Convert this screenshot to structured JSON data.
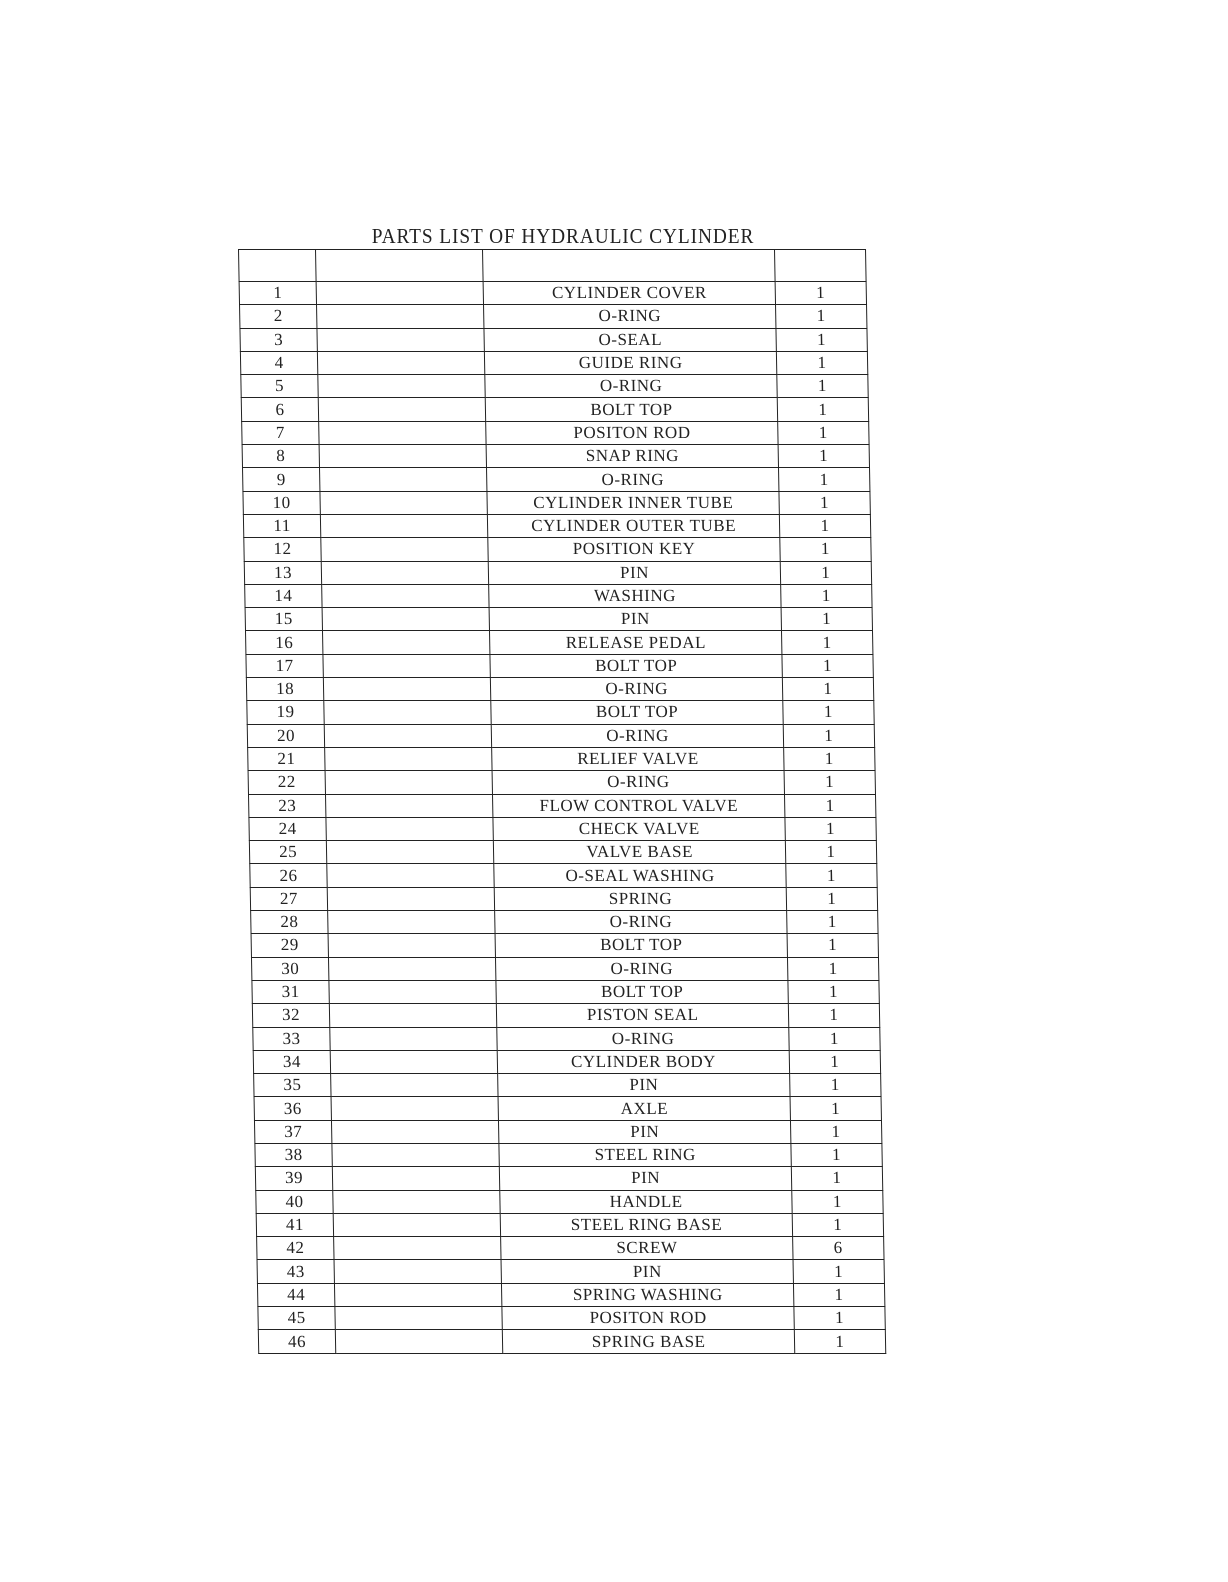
{
  "title": "PARTS LIST OF HYDRAULIC CYLINDER",
  "table": {
    "header": [
      "",
      "",
      "",
      ""
    ],
    "rows": [
      {
        "no": "1",
        "part_no": "",
        "name": "CYLINDER COVER",
        "qty": "1"
      },
      {
        "no": "2",
        "part_no": "",
        "name": "O-RING",
        "qty": "1"
      },
      {
        "no": "3",
        "part_no": "",
        "name": "O-SEAL",
        "qty": "1"
      },
      {
        "no": "4",
        "part_no": "",
        "name": "GUIDE RING",
        "qty": "1"
      },
      {
        "no": "5",
        "part_no": "",
        "name": "O-RING",
        "qty": "1"
      },
      {
        "no": "6",
        "part_no": "",
        "name": "BOLT TOP",
        "qty": "1"
      },
      {
        "no": "7",
        "part_no": "",
        "name": "POSITON ROD",
        "qty": "1"
      },
      {
        "no": "8",
        "part_no": "",
        "name": "SNAP RING",
        "qty": "1"
      },
      {
        "no": "9",
        "part_no": "",
        "name": "O-RING",
        "qty": "1"
      },
      {
        "no": "10",
        "part_no": "",
        "name": "CYLINDER INNER TUBE",
        "qty": "1"
      },
      {
        "no": "11",
        "part_no": "",
        "name": "CYLINDER OUTER TUBE",
        "qty": "1"
      },
      {
        "no": "12",
        "part_no": "",
        "name": "POSITION KEY",
        "qty": "1"
      },
      {
        "no": "13",
        "part_no": "",
        "name": "PIN",
        "qty": "1"
      },
      {
        "no": "14",
        "part_no": "",
        "name": "WASHING",
        "qty": "1"
      },
      {
        "no": "15",
        "part_no": "",
        "name": "PIN",
        "qty": "1"
      },
      {
        "no": "16",
        "part_no": "",
        "name": "RELEASE PEDAL",
        "qty": "1"
      },
      {
        "no": "17",
        "part_no": "",
        "name": "BOLT TOP",
        "qty": "1"
      },
      {
        "no": "18",
        "part_no": "",
        "name": "O-RING",
        "qty": "1"
      },
      {
        "no": "19",
        "part_no": "",
        "name": "BOLT TOP",
        "qty": "1"
      },
      {
        "no": "20",
        "part_no": "",
        "name": "O-RING",
        "qty": "1"
      },
      {
        "no": "21",
        "part_no": "",
        "name": "RELIEF VALVE",
        "qty": "1"
      },
      {
        "no": "22",
        "part_no": "",
        "name": "O-RING",
        "qty": "1"
      },
      {
        "no": "23",
        "part_no": "",
        "name": "FLOW CONTROL VALVE",
        "qty": "1"
      },
      {
        "no": "24",
        "part_no": "",
        "name": "CHECK VALVE",
        "qty": "1"
      },
      {
        "no": "25",
        "part_no": "",
        "name": "VALVE BASE",
        "qty": "1"
      },
      {
        "no": "26",
        "part_no": "",
        "name": "O-SEAL WASHING",
        "qty": "1"
      },
      {
        "no": "27",
        "part_no": "",
        "name": "SPRING",
        "qty": "1"
      },
      {
        "no": "28",
        "part_no": "",
        "name": "O-RING",
        "qty": "1"
      },
      {
        "no": "29",
        "part_no": "",
        "name": "BOLT TOP",
        "qty": "1"
      },
      {
        "no": "30",
        "part_no": "",
        "name": "O-RING",
        "qty": "1"
      },
      {
        "no": "31",
        "part_no": "",
        "name": "BOLT TOP",
        "qty": "1"
      },
      {
        "no": "32",
        "part_no": "",
        "name": "PISTON SEAL",
        "qty": "1"
      },
      {
        "no": "33",
        "part_no": "",
        "name": "O-RING",
        "qty": "1"
      },
      {
        "no": "34",
        "part_no": "",
        "name": "CYLINDER BODY",
        "qty": "1"
      },
      {
        "no": "35",
        "part_no": "",
        "name": "PIN",
        "qty": "1"
      },
      {
        "no": "36",
        "part_no": "",
        "name": "AXLE",
        "qty": "1"
      },
      {
        "no": "37",
        "part_no": "",
        "name": "PIN",
        "qty": "1"
      },
      {
        "no": "38",
        "part_no": "",
        "name": "STEEL RING",
        "qty": "1"
      },
      {
        "no": "39",
        "part_no": "",
        "name": "PIN",
        "qty": "1"
      },
      {
        "no": "40",
        "part_no": "",
        "name": "HANDLE",
        "qty": "1"
      },
      {
        "no": "41",
        "part_no": "",
        "name": "STEEL RING BASE",
        "qty": "1"
      },
      {
        "no": "42",
        "part_no": "",
        "name": "SCREW",
        "qty": "6"
      },
      {
        "no": "43",
        "part_no": "",
        "name": "PIN",
        "qty": "1"
      },
      {
        "no": "44",
        "part_no": "",
        "name": "SPRING WASHING",
        "qty": "1"
      },
      {
        "no": "45",
        "part_no": "",
        "name": "POSITON ROD",
        "qty": "1"
      },
      {
        "no": "46",
        "part_no": "",
        "name": "SPRING BASE",
        "qty": "1"
      }
    ]
  }
}
